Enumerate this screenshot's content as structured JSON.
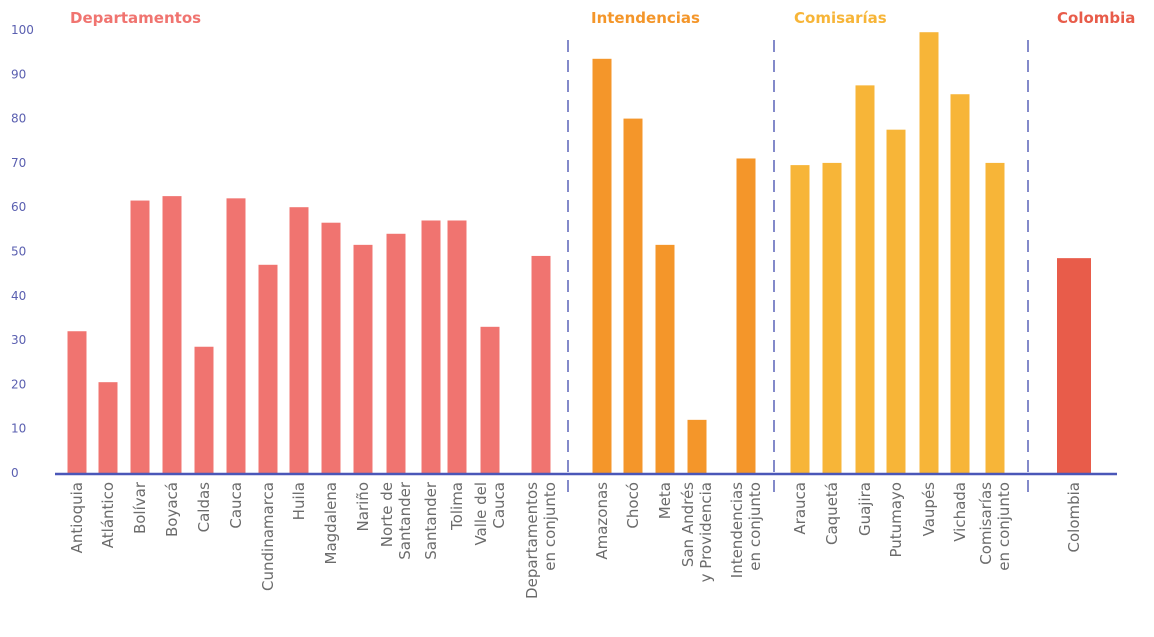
{
  "chart_data": {
    "type": "bar",
    "ylim": [
      0,
      100
    ],
    "yticks": [
      "0",
      "10",
      "20",
      "30",
      "40",
      "50",
      "60",
      "70",
      "80",
      "90",
      "100"
    ],
    "groups": [
      {
        "name": "Departamentos",
        "color": "#F07470",
        "categories": [
          [
            "Antioquia"
          ],
          [
            "Atlántico"
          ],
          [
            "Bolívar"
          ],
          [
            "Boyacá"
          ],
          [
            "Caldas"
          ],
          [
            "Cauca"
          ],
          [
            "Cundinamarca"
          ],
          [
            "Huila"
          ],
          [
            "Magdalena"
          ],
          [
            "Nariño"
          ],
          [
            "Norte de",
            "Santander"
          ],
          [
            "Santander"
          ],
          [
            "Tolima"
          ],
          [
            "Valle del",
            "Cauca"
          ],
          [
            "Departamentos",
            "en conjunto"
          ]
        ],
        "values": [
          32,
          20.5,
          61.5,
          62.5,
          28.5,
          62,
          47,
          60,
          56.5,
          51.5,
          54,
          57,
          57,
          33,
          49
        ]
      },
      {
        "name": "Intendencias",
        "color": "#F4962A",
        "categories": [
          [
            "Amazonas"
          ],
          [
            "Chocó"
          ],
          [
            "Meta"
          ],
          [
            "San Andrés",
            "y Providencia"
          ],
          [
            "Intendencias",
            "en conjunto"
          ]
        ],
        "values": [
          93.5,
          80,
          51.5,
          12,
          71
        ]
      },
      {
        "name": "Comisarías",
        "color": "#F7B538",
        "categories": [
          [
            "Arauca"
          ],
          [
            "Caquetá"
          ],
          [
            "Guajira"
          ],
          [
            "Putumayo"
          ],
          [
            "Vaupés"
          ],
          [
            "Vichada"
          ],
          [
            "Comisarías",
            "en conjunto"
          ]
        ],
        "values": [
          69.5,
          70,
          87.5,
          77.5,
          99.5,
          85.5,
          70
        ]
      },
      {
        "name": "Colombia",
        "color": "#E85C4A",
        "categories": [
          [
            "Colombia"
          ]
        ],
        "values": [
          48.5
        ]
      }
    ],
    "axis_color": "#4a57b8",
    "divider_color": "#5a64b8",
    "grid": false
  }
}
